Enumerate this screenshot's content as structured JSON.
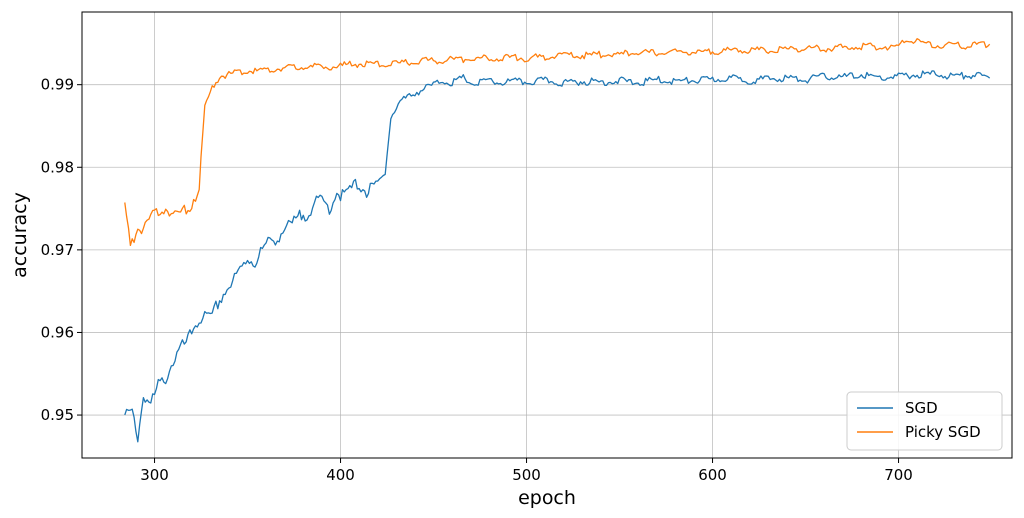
{
  "chart_data": {
    "type": "line",
    "title": "",
    "xlabel": "epoch",
    "ylabel": "accuracy",
    "xlim": [
      261,
      761
    ],
    "ylim": [
      0.9448,
      0.9988
    ],
    "xticks": [
      300,
      400,
      500,
      600,
      700
    ],
    "yticks": [
      0.95,
      0.96,
      0.97,
      0.98,
      0.99
    ],
    "ytick_labels": [
      "0.95",
      "0.96",
      "0.97",
      "0.98",
      "0.99"
    ],
    "xtick_labels": [
      "300",
      "400",
      "500",
      "600",
      "700"
    ],
    "grid": true,
    "legend_position": "lower-right",
    "series": [
      {
        "name": "SGD",
        "color": "#1f77b4",
        "points": [
          [
            284,
            0.9497
          ],
          [
            288,
            0.9505
          ],
          [
            291,
            0.9472
          ],
          [
            294,
            0.9525
          ],
          [
            298,
            0.9512
          ],
          [
            302,
            0.9535
          ],
          [
            306,
            0.9545
          ],
          [
            310,
            0.9565
          ],
          [
            314,
            0.958
          ],
          [
            318,
            0.959
          ],
          [
            322,
            0.961
          ],
          [
            326,
            0.962
          ],
          [
            330,
            0.9615
          ],
          [
            334,
            0.9635
          ],
          [
            338,
            0.965
          ],
          [
            342,
            0.966
          ],
          [
            346,
            0.9675
          ],
          [
            350,
            0.969
          ],
          [
            354,
            0.9685
          ],
          [
            358,
            0.97
          ],
          [
            362,
            0.971
          ],
          [
            366,
            0.9715
          ],
          [
            370,
            0.9725
          ],
          [
            374,
            0.973
          ],
          [
            378,
            0.974
          ],
          [
            382,
            0.9745
          ],
          [
            386,
            0.9755
          ],
          [
            390,
            0.976
          ],
          [
            394,
            0.975
          ],
          [
            398,
            0.977
          ],
          [
            402,
            0.9765
          ],
          [
            406,
            0.9775
          ],
          [
            410,
            0.978
          ],
          [
            414,
            0.977
          ],
          [
            418,
            0.9775
          ],
          [
            422,
            0.9785
          ],
          [
            424,
            0.98
          ],
          [
            427,
            0.986
          ],
          [
            432,
            0.988
          ],
          [
            436,
            0.9885
          ],
          [
            440,
            0.989
          ],
          [
            445,
            0.9895
          ],
          [
            450,
            0.99
          ],
          [
            455,
            0.9905
          ],
          [
            460,
            0.9902
          ],
          [
            466,
            0.9908
          ],
          [
            472,
            0.99
          ],
          [
            478,
            0.9905
          ],
          [
            485,
            0.9902
          ],
          [
            492,
            0.9904
          ],
          [
            500,
            0.9903
          ],
          [
            510,
            0.9905
          ],
          [
            520,
            0.9902
          ],
          [
            530,
            0.9904
          ],
          [
            540,
            0.9903
          ],
          [
            550,
            0.9905
          ],
          [
            560,
            0.9902
          ],
          [
            570,
            0.9906
          ],
          [
            580,
            0.9904
          ],
          [
            590,
            0.9905
          ],
          [
            600,
            0.9906
          ],
          [
            610,
            0.9908
          ],
          [
            620,
            0.9905
          ],
          [
            630,
            0.9907
          ],
          [
            640,
            0.9908
          ],
          [
            650,
            0.9906
          ],
          [
            660,
            0.991
          ],
          [
            670,
            0.9909
          ],
          [
            680,
            0.9912
          ],
          [
            690,
            0.9908
          ],
          [
            700,
            0.991
          ],
          [
            710,
            0.9912
          ],
          [
            720,
            0.9913
          ],
          [
            730,
            0.991
          ],
          [
            740,
            0.9912
          ],
          [
            749,
            0.9908
          ]
        ]
      },
      {
        "name": "Picky SGD",
        "color": "#ff7f0e",
        "points": [
          [
            284,
            0.975
          ],
          [
            287,
            0.971
          ],
          [
            291,
            0.9725
          ],
          [
            295,
            0.973
          ],
          [
            299,
            0.974
          ],
          [
            303,
            0.9748
          ],
          [
            307,
            0.9752
          ],
          [
            311,
            0.974
          ],
          [
            315,
            0.9745
          ],
          [
            319,
            0.9755
          ],
          [
            322,
            0.9765
          ],
          [
            324,
            0.978
          ],
          [
            327,
            0.987
          ],
          [
            331,
            0.9895
          ],
          [
            335,
            0.991
          ],
          [
            340,
            0.9912
          ],
          [
            345,
            0.9915
          ],
          [
            350,
            0.9918
          ],
          [
            355,
            0.9916
          ],
          [
            360,
            0.9918
          ],
          [
            370,
            0.992
          ],
          [
            380,
            0.9922
          ],
          [
            390,
            0.9921
          ],
          [
            400,
            0.9923
          ],
          [
            410,
            0.9925
          ],
          [
            420,
            0.9924
          ],
          [
            430,
            0.9926
          ],
          [
            440,
            0.9928
          ],
          [
            450,
            0.9929
          ],
          [
            460,
            0.993
          ],
          [
            470,
            0.9931
          ],
          [
            480,
            0.9932
          ],
          [
            490,
            0.9933
          ],
          [
            500,
            0.9932
          ],
          [
            510,
            0.9934
          ],
          [
            520,
            0.9935
          ],
          [
            530,
            0.9936
          ],
          [
            540,
            0.9936
          ],
          [
            550,
            0.9937
          ],
          [
            560,
            0.9938
          ],
          [
            570,
            0.9939
          ],
          [
            580,
            0.994
          ],
          [
            590,
            0.9939
          ],
          [
            600,
            0.994
          ],
          [
            610,
            0.9941
          ],
          [
            620,
            0.9942
          ],
          [
            630,
            0.9942
          ],
          [
            640,
            0.9943
          ],
          [
            650,
            0.9944
          ],
          [
            660,
            0.9944
          ],
          [
            670,
            0.9945
          ],
          [
            680,
            0.9946
          ],
          [
            690,
            0.9946
          ],
          [
            700,
            0.9947
          ],
          [
            705,
            0.9955
          ],
          [
            710,
            0.9952
          ],
          [
            720,
            0.9948
          ],
          [
            730,
            0.9947
          ],
          [
            740,
            0.9948
          ],
          [
            749,
            0.9949
          ]
        ]
      }
    ]
  }
}
